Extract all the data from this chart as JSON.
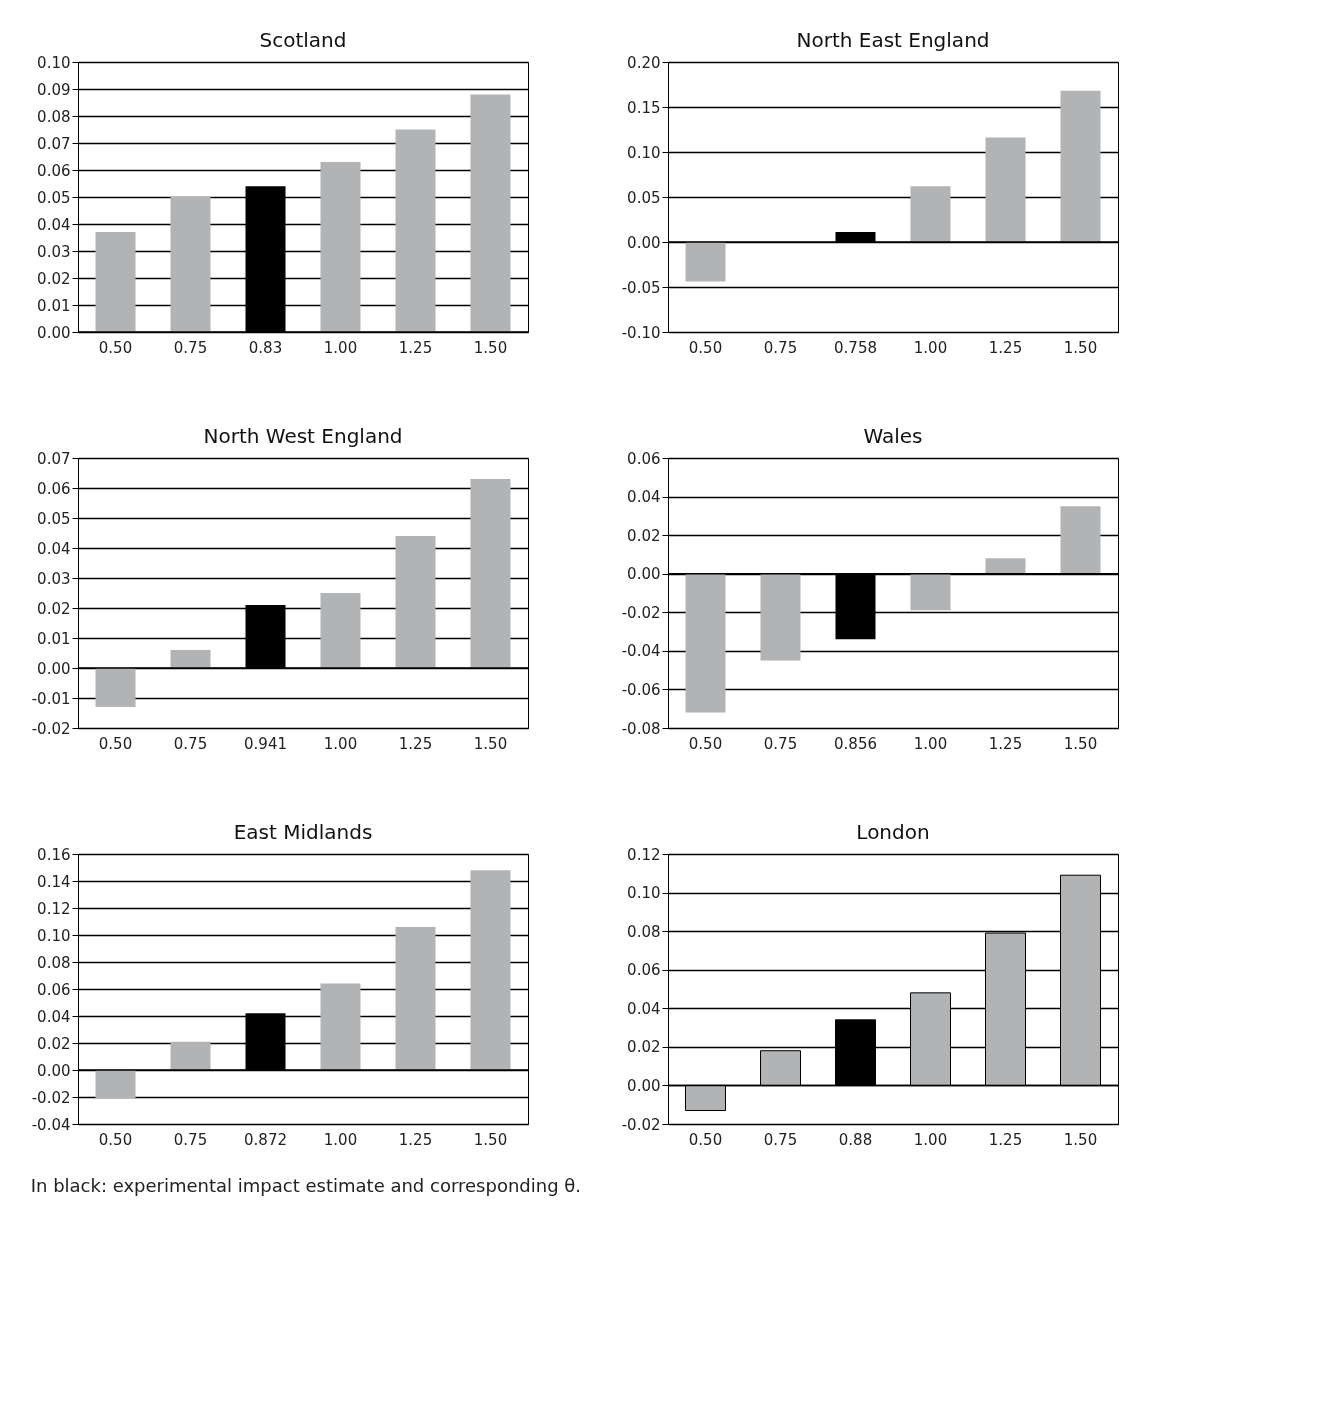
{
  "chart_data": [
    {
      "type": "bar",
      "title": "Scotland",
      "categories": [
        "0.50",
        "0.75",
        "0.83",
        "1.00",
        "1.25",
        "1.50"
      ],
      "values": [
        0.037,
        0.05,
        0.054,
        0.063,
        0.075,
        0.088
      ],
      "colors": [
        "#b2b3b5",
        "#b2b3b5",
        "#000000",
        "#b2b3b5",
        "#b2b3b5",
        "#b2b3b5"
      ],
      "ylim": [
        0,
        0.1
      ],
      "yticks": [
        {
          "value": 0,
          "label": "0.00"
        },
        {
          "value": 0.01,
          "label": "0.01"
        },
        {
          "value": 0.02,
          "label": "0.02"
        },
        {
          "value": 0.03,
          "label": "0.03"
        },
        {
          "value": 0.04,
          "label": "0.04"
        },
        {
          "value": 0.05,
          "label": "0.05"
        },
        {
          "value": 0.06,
          "label": "0.06"
        },
        {
          "value": 0.07,
          "label": "0.07"
        },
        {
          "value": 0.08,
          "label": "0.08"
        },
        {
          "value": 0.09,
          "label": "0.09"
        },
        {
          "value": 0.1,
          "label": "0.10"
        }
      ],
      "grid": "y"
    },
    {
      "type": "bar",
      "title": "North East England",
      "categories": [
        "0.50",
        "0.75",
        "0.758",
        "1.00",
        "1.25",
        "1.50"
      ],
      "values": [
        -0.044,
        null,
        0.011,
        0.062,
        0.116,
        0.168
      ],
      "colors": [
        "#b2b3b5",
        "#b2b3b5",
        "#000000",
        "#b2b3b5",
        "#b2b3b5",
        "#b2b3b5"
      ],
      "ylim": [
        -0.1,
        0.2
      ],
      "yticks": [
        {
          "value": -0.1,
          "label": "-0.10"
        },
        {
          "value": -0.05,
          "label": "-0.05"
        },
        {
          "value": 0,
          "label": "0.00"
        },
        {
          "value": 0.05,
          "label": "0.05"
        },
        {
          "value": 0.1,
          "label": "0.10"
        },
        {
          "value": 0.15,
          "label": "0.15"
        },
        {
          "value": 0.2,
          "label": "0.20"
        }
      ],
      "grid": "y"
    },
    {
      "type": "bar",
      "title": "North West England",
      "categories": [
        "0.50",
        "0.75",
        "0.941",
        "1.00",
        "1.25",
        "1.50"
      ],
      "values": [
        -0.013,
        0.006,
        0.021,
        0.025,
        0.044,
        0.063
      ],
      "colors": [
        "#b2b3b5",
        "#b2b3b5",
        "#000000",
        "#b2b3b5",
        "#b2b3b5",
        "#b2b3b5"
      ],
      "ylim": [
        -0.02,
        0.07
      ],
      "yticks": [
        {
          "value": -0.02,
          "label": "-0.02"
        },
        {
          "value": -0.01,
          "label": "-0.01"
        },
        {
          "value": 0,
          "label": "0.00"
        },
        {
          "value": 0.01,
          "label": "0.01"
        },
        {
          "value": 0.02,
          "label": "0.02"
        },
        {
          "value": 0.03,
          "label": "0.03"
        },
        {
          "value": 0.04,
          "label": "0.04"
        },
        {
          "value": 0.05,
          "label": "0.05"
        },
        {
          "value": 0.06,
          "label": "0.06"
        },
        {
          "value": 0.07,
          "label": "0.07"
        }
      ],
      "grid": "y"
    },
    {
      "type": "bar",
      "title": "Wales",
      "categories": [
        "0.50",
        "0.75",
        "0.856",
        "1.00",
        "1.25",
        "1.50"
      ],
      "values": [
        -0.072,
        -0.045,
        -0.034,
        -0.019,
        0.008,
        0.035
      ],
      "colors": [
        "#b2b3b5",
        "#b2b3b5",
        "#000000",
        "#b2b3b5",
        "#b2b3b5",
        "#b2b3b5"
      ],
      "ylim": [
        -0.08,
        0.06
      ],
      "yticks": [
        {
          "value": -0.08,
          "label": "-0.08"
        },
        {
          "value": -0.06,
          "label": "-0.06"
        },
        {
          "value": -0.04,
          "label": "-0.04"
        },
        {
          "value": -0.02,
          "label": "-0.02"
        },
        {
          "value": 0,
          "label": "0.00"
        },
        {
          "value": 0.02,
          "label": "0.02"
        },
        {
          "value": 0.04,
          "label": "0.04"
        },
        {
          "value": 0.06,
          "label": "0.06"
        }
      ],
      "grid": "y"
    },
    {
      "type": "bar",
      "title": "East Midlands",
      "categories": [
        "0.50",
        "0.75",
        "0.872",
        "1.00",
        "1.25",
        "1.50"
      ],
      "values": [
        -0.021,
        0.021,
        0.042,
        0.064,
        0.106,
        0.148
      ],
      "colors": [
        "#b2b3b5",
        "#b2b3b5",
        "#000000",
        "#b2b3b5",
        "#b2b3b5",
        "#b2b3b5"
      ],
      "ylim": [
        -0.04,
        0.16
      ],
      "yticks": [
        {
          "value": -0.04,
          "label": "-0.04"
        },
        {
          "value": -0.02,
          "label": "-0.02"
        },
        {
          "value": 0,
          "label": "0.00"
        },
        {
          "value": 0.02,
          "label": "0.02"
        },
        {
          "value": 0.04,
          "label": "0.04"
        },
        {
          "value": 0.06,
          "label": "0.06"
        },
        {
          "value": 0.08,
          "label": "0.08"
        },
        {
          "value": 0.1,
          "label": "0.10"
        },
        {
          "value": 0.12,
          "label": "0.12"
        },
        {
          "value": 0.14,
          "label": "0.14"
        },
        {
          "value": 0.16,
          "label": "0.16"
        }
      ],
      "grid": "y",
      "annotations": [
        "In black: experimental impact estimate and corresponding θ."
      ]
    },
    {
      "type": "bar",
      "title": "London",
      "categories": [
        "0.50",
        "0.75",
        "0.88",
        "1.00",
        "1.25",
        "1.50"
      ],
      "values": [
        -0.013,
        0.018,
        0.034,
        0.048,
        0.079,
        0.109
      ],
      "colors": [
        "#b2b3b5",
        "#b2b3b5",
        "#000000",
        "#b2b3b5",
        "#b2b3b5",
        "#b2b3b5"
      ],
      "ylim": [
        -0.02,
        0.12
      ],
      "yticks": [
        {
          "value": -0.02,
          "label": "-0.02"
        },
        {
          "value": 0,
          "label": "0.00"
        },
        {
          "value": 0.02,
          "label": "0.02"
        },
        {
          "value": 0.04,
          "label": "0.04"
        },
        {
          "value": 0.06,
          "label": "0.06"
        },
        {
          "value": 0.08,
          "label": "0.08"
        },
        {
          "value": 0.1,
          "label": "0.10"
        },
        {
          "value": 0.12,
          "label": "0.12"
        }
      ],
      "grid": "y"
    }
  ]
}
